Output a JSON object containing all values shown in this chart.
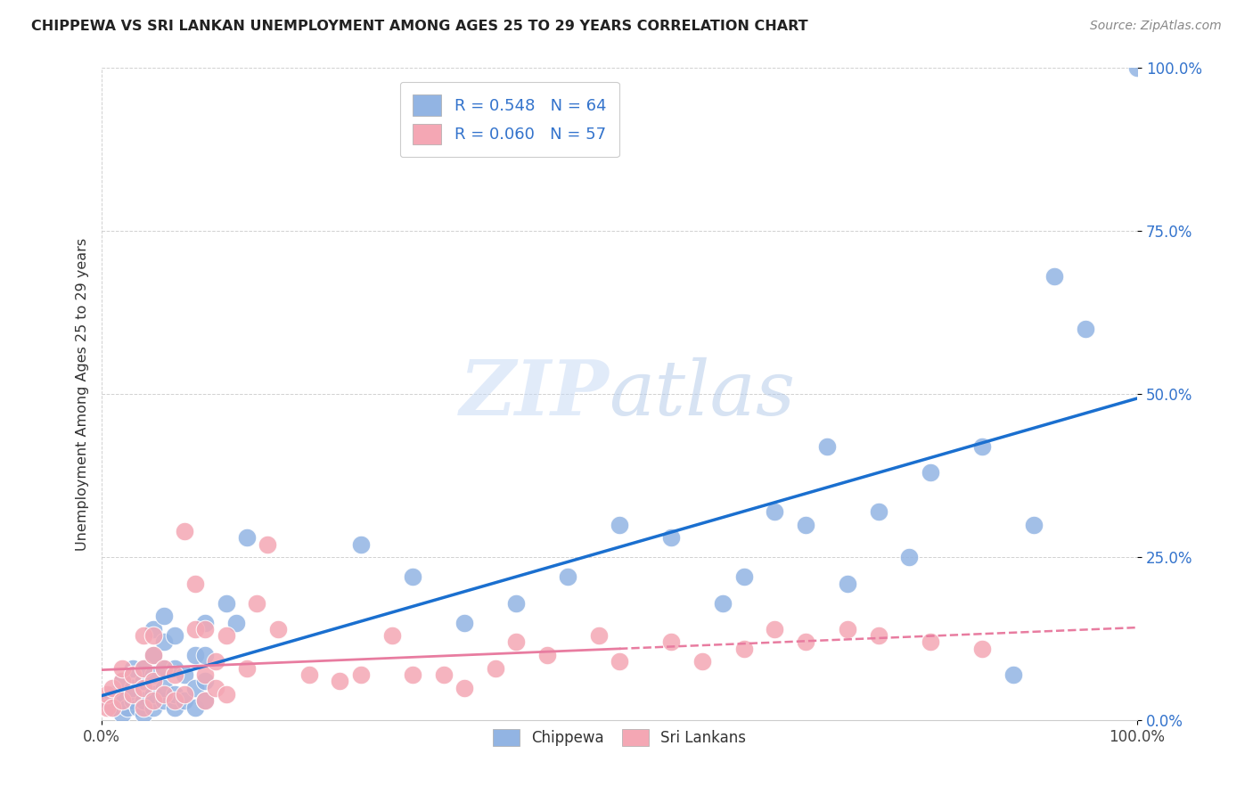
{
  "title": "CHIPPEWA VS SRI LANKAN UNEMPLOYMENT AMONG AGES 25 TO 29 YEARS CORRELATION CHART",
  "source": "Source: ZipAtlas.com",
  "ylabel": "Unemployment Among Ages 25 to 29 years",
  "ytick_labels": [
    "0.0%",
    "25.0%",
    "50.0%",
    "75.0%",
    "100.0%"
  ],
  "ytick_values": [
    0.0,
    0.25,
    0.5,
    0.75,
    1.0
  ],
  "xtick_left": "0.0%",
  "xtick_right": "100.0%",
  "xlim": [
    0.0,
    1.0
  ],
  "ylim": [
    0.0,
    1.0
  ],
  "chippewa_color": "#92b4e3",
  "srilanka_color": "#f4a7b4",
  "chippewa_line_color": "#1a6fcf",
  "srilanka_line_color": "#e87ca0",
  "legend_R_chippewa": "0.548",
  "legend_N_chippewa": "64",
  "legend_R_srilanka": "0.060",
  "legend_N_srilanka": "57",
  "legend_text_color": "#3373cc",
  "watermark_text": "ZIP",
  "watermark_text2": "atlas",
  "background_color": "#ffffff",
  "grid_color": "#cccccc",
  "chippewa_x": [
    0.005,
    0.01,
    0.01,
    0.015,
    0.02,
    0.02,
    0.02,
    0.025,
    0.03,
    0.03,
    0.03,
    0.035,
    0.04,
    0.04,
    0.04,
    0.04,
    0.05,
    0.05,
    0.05,
    0.05,
    0.05,
    0.06,
    0.06,
    0.06,
    0.06,
    0.06,
    0.07,
    0.07,
    0.07,
    0.07,
    0.08,
    0.08,
    0.09,
    0.09,
    0.09,
    0.1,
    0.1,
    0.1,
    0.1,
    0.12,
    0.13,
    0.14,
    0.25,
    0.3,
    0.35,
    0.4,
    0.45,
    0.5,
    0.55,
    0.6,
    0.62,
    0.65,
    0.68,
    0.7,
    0.72,
    0.75,
    0.78,
    0.8,
    0.85,
    0.88,
    0.9,
    0.92,
    0.95,
    1.0
  ],
  "chippewa_y": [
    0.03,
    0.02,
    0.04,
    0.03,
    0.01,
    0.04,
    0.06,
    0.02,
    0.03,
    0.05,
    0.08,
    0.02,
    0.01,
    0.03,
    0.06,
    0.08,
    0.02,
    0.04,
    0.07,
    0.1,
    0.14,
    0.03,
    0.05,
    0.08,
    0.12,
    0.16,
    0.02,
    0.04,
    0.08,
    0.13,
    0.03,
    0.07,
    0.02,
    0.05,
    0.1,
    0.03,
    0.06,
    0.1,
    0.15,
    0.18,
    0.15,
    0.28,
    0.27,
    0.22,
    0.15,
    0.18,
    0.22,
    0.3,
    0.28,
    0.18,
    0.22,
    0.32,
    0.3,
    0.42,
    0.21,
    0.32,
    0.25,
    0.38,
    0.42,
    0.07,
    0.3,
    0.68,
    0.6,
    1.0
  ],
  "srilanka_x": [
    0.005,
    0.005,
    0.01,
    0.01,
    0.02,
    0.02,
    0.02,
    0.03,
    0.03,
    0.04,
    0.04,
    0.04,
    0.04,
    0.05,
    0.05,
    0.05,
    0.05,
    0.06,
    0.06,
    0.07,
    0.07,
    0.08,
    0.08,
    0.09,
    0.09,
    0.1,
    0.1,
    0.1,
    0.11,
    0.11,
    0.12,
    0.12,
    0.14,
    0.15,
    0.16,
    0.17,
    0.2,
    0.23,
    0.25,
    0.28,
    0.3,
    0.33,
    0.35,
    0.38,
    0.4,
    0.43,
    0.48,
    0.5,
    0.55,
    0.58,
    0.62,
    0.65,
    0.68,
    0.72,
    0.75,
    0.8,
    0.85
  ],
  "srilanka_y": [
    0.02,
    0.04,
    0.02,
    0.05,
    0.03,
    0.06,
    0.08,
    0.04,
    0.07,
    0.02,
    0.05,
    0.08,
    0.13,
    0.03,
    0.06,
    0.1,
    0.13,
    0.04,
    0.08,
    0.03,
    0.07,
    0.04,
    0.29,
    0.14,
    0.21,
    0.03,
    0.07,
    0.14,
    0.05,
    0.09,
    0.04,
    0.13,
    0.08,
    0.18,
    0.27,
    0.14,
    0.07,
    0.06,
    0.07,
    0.13,
    0.07,
    0.07,
    0.05,
    0.08,
    0.12,
    0.1,
    0.13,
    0.09,
    0.12,
    0.09,
    0.11,
    0.14,
    0.12,
    0.14,
    0.13,
    0.12,
    0.11
  ]
}
